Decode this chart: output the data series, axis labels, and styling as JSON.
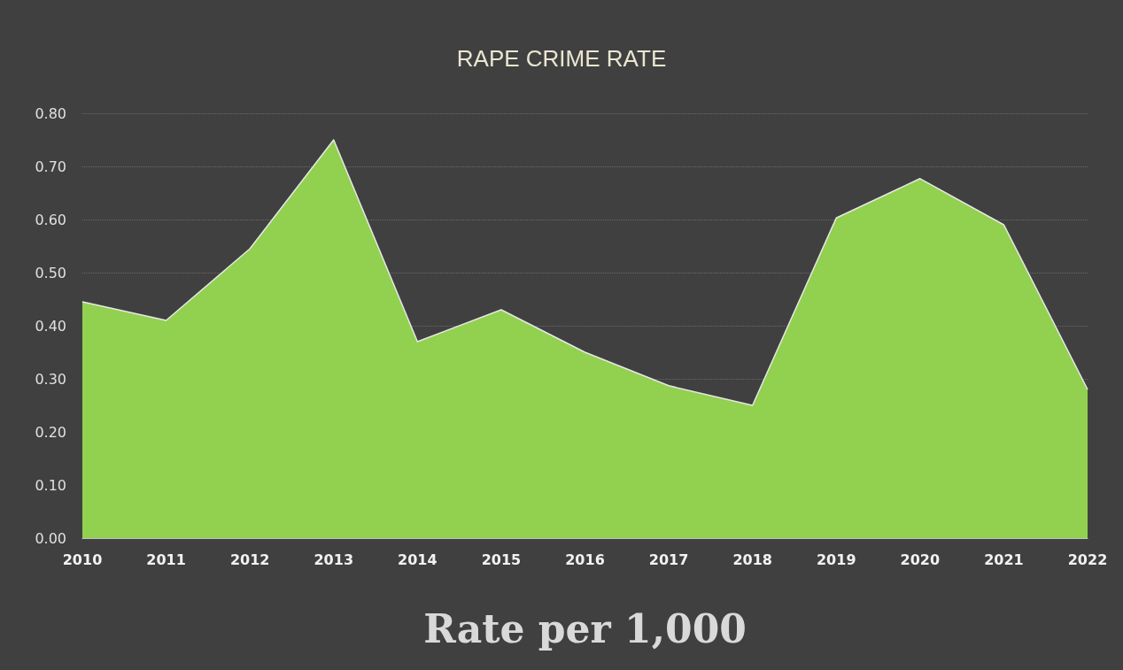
{
  "chart_data": {
    "type": "area",
    "title": "RAPE CRIME RATE",
    "xlabel": "Rate per 1,000",
    "categories": [
      "2010",
      "2011",
      "2012",
      "2013",
      "2014",
      "2015",
      "2016",
      "2017",
      "2018",
      "2019",
      "2020",
      "2021",
      "2022"
    ],
    "series": [
      {
        "color": "#92d050",
        "values": [
          0.445,
          0.41,
          0.545,
          0.75,
          0.37,
          0.43,
          0.35,
          0.287,
          0.25,
          0.603,
          0.677,
          0.59,
          0.28
        ]
      }
    ],
    "ylim": [
      0,
      0.8
    ],
    "yticks": [
      {
        "value": 0,
        "label": "0.00"
      },
      {
        "value": 0.1,
        "label": "0.10"
      },
      {
        "value": 0.2,
        "label": "0.20"
      },
      {
        "value": 0.3,
        "label": "0.30"
      },
      {
        "value": 0.4,
        "label": "0.40"
      },
      {
        "value": 0.5,
        "label": "0.50"
      },
      {
        "value": 0.6,
        "label": "0.60"
      },
      {
        "value": 0.7,
        "label": "0.70"
      },
      {
        "value": 0.8,
        "label": "0.80"
      }
    ],
    "grid": "y",
    "marker": "none",
    "line_style": "solid"
  }
}
